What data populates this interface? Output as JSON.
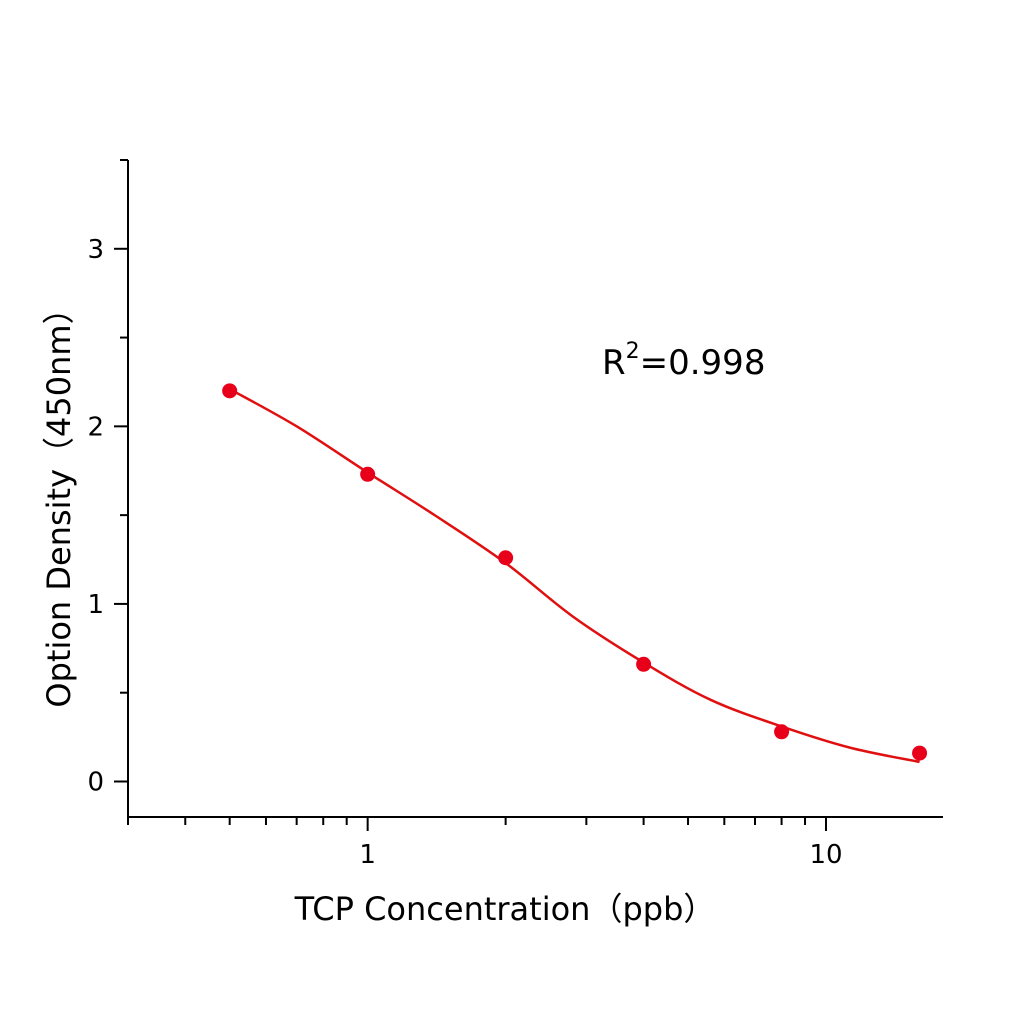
{
  "chart_data": {
    "type": "scatter",
    "title": "",
    "xlabel": "TCP Concentration（ppb）",
    "ylabel": "Option Density（450nm）",
    "xscale": "log",
    "xlim": [
      0.3,
      18
    ],
    "ylim": [
      -0.2,
      3.5
    ],
    "xticks": [
      {
        "value": 1,
        "label": "1"
      },
      {
        "value": 10,
        "label": "10"
      }
    ],
    "yticks": [
      {
        "value": 0,
        "label": "0"
      },
      {
        "value": 1,
        "label": "1"
      },
      {
        "value": 2,
        "label": "2"
      },
      {
        "value": 3,
        "label": "3"
      }
    ],
    "grid": false,
    "points": {
      "x": [
        0.5,
        1,
        2,
        4,
        8,
        16
      ],
      "y": [
        2.2,
        1.73,
        1.26,
        0.66,
        0.28,
        0.16
      ],
      "color": "#e8001a"
    },
    "fit_curve": {
      "x": [
        0.5,
        0.7,
        1,
        1.4,
        2,
        2.8,
        4,
        5.6,
        8,
        11.3,
        16
      ],
      "y": [
        2.21,
        2.0,
        1.74,
        1.5,
        1.23,
        0.93,
        0.67,
        0.46,
        0.31,
        0.19,
        0.11
      ],
      "color": "#e01010"
    },
    "annotation": {
      "base": "R",
      "sup": "2",
      "rest": "=0.998"
    }
  }
}
